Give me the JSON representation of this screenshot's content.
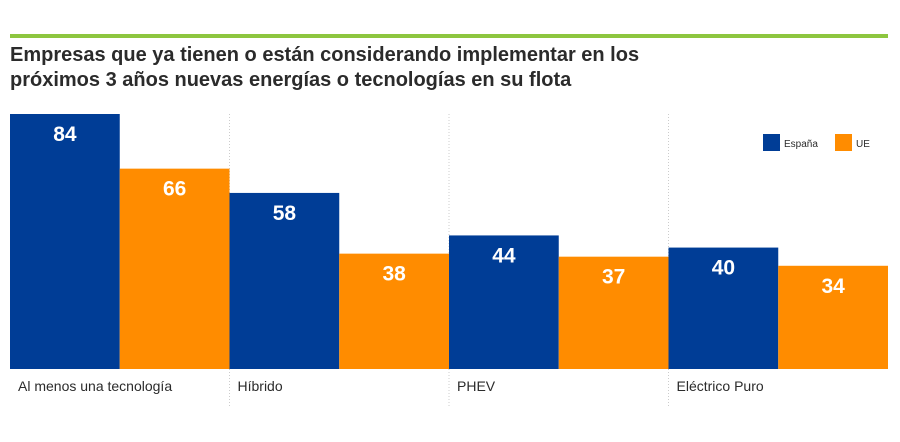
{
  "title": {
    "line1": "Empresas que ya tienen o están considerando implementar en los",
    "line2": "próximos 3 años nuevas energías o tecnologías en su flota"
  },
  "colors": {
    "accent_rule": "#8dc63f",
    "espana": "#003d96",
    "ue": "#ff8c00",
    "separator": "#cccccc"
  },
  "chart_data": {
    "type": "bar",
    "title": "Empresas que ya tienen o están considerando implementar en los próximos 3 años nuevas energías o tecnologías en su flota",
    "categories": [
      "Al menos una tecnología",
      "Híbrido",
      "PHEV",
      "Eléctrico Puro"
    ],
    "series": [
      {
        "name": "España",
        "values": [
          84,
          58,
          44,
          40
        ]
      },
      {
        "name": "UE",
        "values": [
          66,
          38,
          37,
          34
        ]
      }
    ],
    "ylim": [
      0,
      84
    ],
    "xlabel": "",
    "ylabel": "",
    "legend": "top-right"
  }
}
